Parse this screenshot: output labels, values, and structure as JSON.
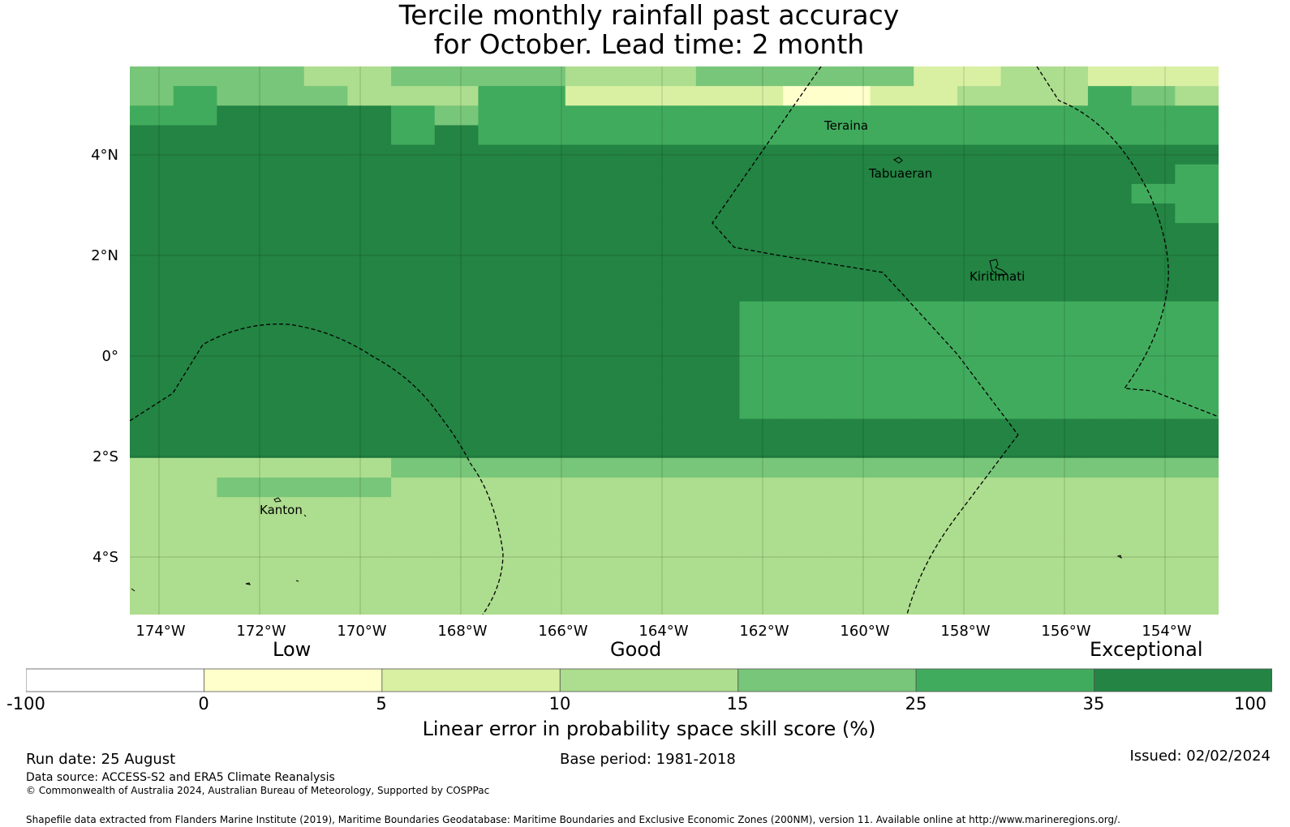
{
  "title_line1": "Tercile monthly rainfall past accuracy",
  "title_line2": "for October. Lead time: 2 month",
  "map": {
    "y_ticks": [
      "4°N",
      "2°N",
      "0°",
      "2°S",
      "4°S"
    ],
    "x_ticks": [
      "174°W",
      "172°W",
      "170°W",
      "168°W",
      "166°W",
      "164°W",
      "162°W",
      "160°W",
      "158°W",
      "156°W",
      "154°W"
    ],
    "places": {
      "teraina": "Teraina",
      "tabuaeran": "Tabuaeran",
      "kiritimati": "Kiritimati",
      "kanton": "Kanton"
    },
    "grid_values": [
      "2222332222333222224433444",
      "2122233311444445544333123",
      "1100001211111111111111111",
      "0000001011111111111111111",
      "0000000000000000000000000",
      "0000000000000000000000001",
      "0000000000000000000000011",
      "0000000000000000000000001",
      "0000000000000000000000000",
      "0000000000000000000000000",
      "0000000000000000000000000",
      "0000000000000000000000000",
      "0000000000000011111111111",
      "0000000000000011111111111",
      "0000000000000011111111111",
      "0000000000000011111111111",
      "0000000000000011111111111",
      "0000000000000011111111111",
      "0000000000000000000000000",
      "0000000000000000000000000",
      "3333332222222222222222222",
      "3322223333333333333333333",
      "3333333333333333333333333",
      "3333333333333333333333333",
      "3333333333333333333333333",
      "3333333333333333333333333",
      "3333333333333333333333333",
      "3333333333333333333333333"
    ]
  },
  "legend": {
    "low": "Low",
    "good": "Good",
    "exceptional": "Exceptional",
    "ticks": [
      "-100",
      "0",
      "5",
      "10",
      "15",
      "25",
      "35",
      "100"
    ],
    "colors": [
      "#ffffff",
      "#ffffcc",
      "#d9f0a3",
      "#addd8e",
      "#78c679",
      "#41ab5d",
      "#238443"
    ],
    "axis_label": "Linear error in probability space skill score (%)"
  },
  "footer": {
    "run_date": "Run date: 25 August",
    "base_period": "Base period: 1981-2018",
    "issued": "Issued: 02/02/2024",
    "data_source": "Data source: ACCESS-S2 and ERA5 Climate Reanalysis",
    "copyright": "© Commonwealth of Australia 2024, Australian Bureau of Meteorology, Supported by COSPPac",
    "shapefile": "Shapefile data extracted from Flanders Marine Institute (2019), Maritime Boundaries Geodatabase: Maritime Boundaries and Exclusive Economic Zones (200NM), version 11. Available online at http://www.marineregions.org/."
  }
}
